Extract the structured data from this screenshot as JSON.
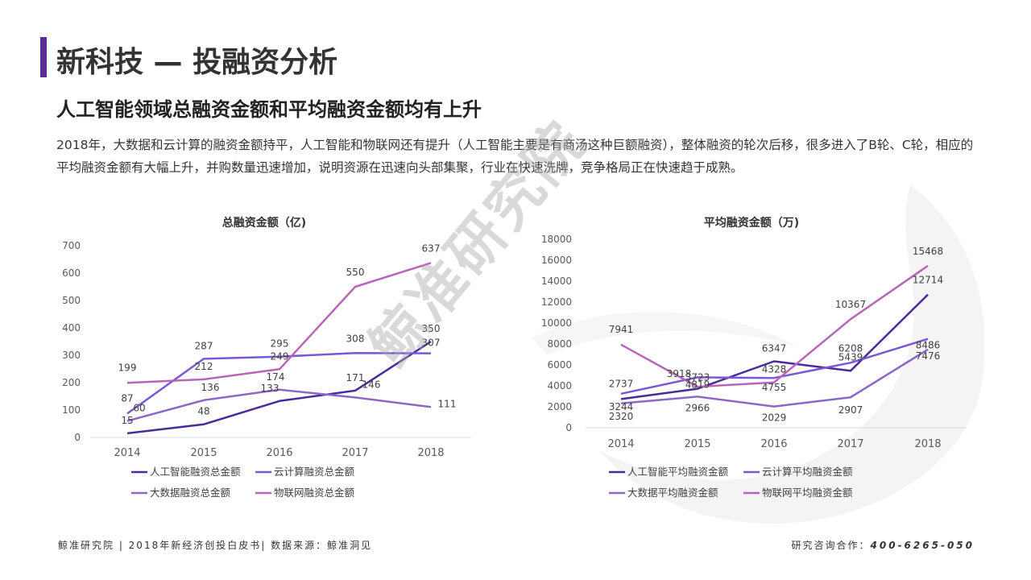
{
  "header": {
    "title": "新科技 — 投融资分析",
    "subtitle": "人工智能领域总融资金额和平均融资金额均有上升",
    "description": "2018年，大数据和云计算的融资金额持平，人工智能和物联网还有提升（人工智能主要是有商汤这种巨额融资），整体融资的轮次后移，很多进入了B轮、C轮，相应的平均融资金额有大幅上升，并购数量迅速增加，说明资源在迅速向头部集聚，行业在快速洗牌，竞争格局正在快速趋于成熟。"
  },
  "watermark": "鲸准研究院",
  "footer": {
    "left": "鲸准研究院 | 2018年新经济创投白皮书| 数据来源：鲸准洞见",
    "right_label": "研究咨询合作：",
    "right_phone": "400-6265-050"
  },
  "colors": {
    "accent": "#5b2d90",
    "ai": "#4b2a9b",
    "cloud": "#7b57d6",
    "bigdata": "#8b67c6",
    "iot": "#b865b8"
  },
  "chart_data": [
    {
      "type": "line",
      "title": "总融资金额（亿)",
      "categories": [
        "2014",
        "2015",
        "2016",
        "2017",
        "2018"
      ],
      "ylim": [
        0,
        700
      ],
      "yticks": [
        0,
        100,
        200,
        300,
        400,
        500,
        600,
        700
      ],
      "grid": false,
      "legend_position": "bottom",
      "series": [
        {
          "name": "人工智能融资总金额",
          "values": [
            15,
            48,
            133,
            171,
            350
          ],
          "color": "#4b2a9b"
        },
        {
          "name": "云计算融资总金额",
          "values": [
            87,
            287,
            295,
            308,
            307
          ],
          "color": "#7b57d6"
        },
        {
          "name": "大数据融资总金额",
          "values": [
            60,
            136,
            174,
            146,
            111
          ],
          "color": "#8b67c6"
        },
        {
          "name": "物联网融资总金额",
          "values": [
            199,
            212,
            249,
            550,
            637
          ],
          "color": "#b865b8"
        }
      ]
    },
    {
      "type": "line",
      "title": "平均融资金额（万)",
      "categories": [
        "2014",
        "2015",
        "2016",
        "2017",
        "2018"
      ],
      "ylim": [
        0,
        18000
      ],
      "yticks": [
        0,
        2000,
        4000,
        6000,
        8000,
        10000,
        12000,
        14000,
        16000,
        18000
      ],
      "grid": false,
      "legend_position": "bottom",
      "series": [
        {
          "name": "人工智能平均融资金额",
          "values": [
            2737,
            3723,
            6347,
            5439,
            12714
          ],
          "color": "#4b2a9b"
        },
        {
          "name": "云计算平均融资金额",
          "values": [
            3244,
            4819,
            4755,
            6208,
            8486
          ],
          "color": "#7b57d6"
        },
        {
          "name": "大数据平均融资金额",
          "values": [
            2320,
            2966,
            2029,
            2907,
            7476
          ],
          "color": "#8b67c6"
        },
        {
          "name": "物联网平均融资金额",
          "values": [
            7941,
            3918,
            4328,
            10367,
            15468
          ],
          "color": "#b865b8"
        }
      ]
    }
  ]
}
